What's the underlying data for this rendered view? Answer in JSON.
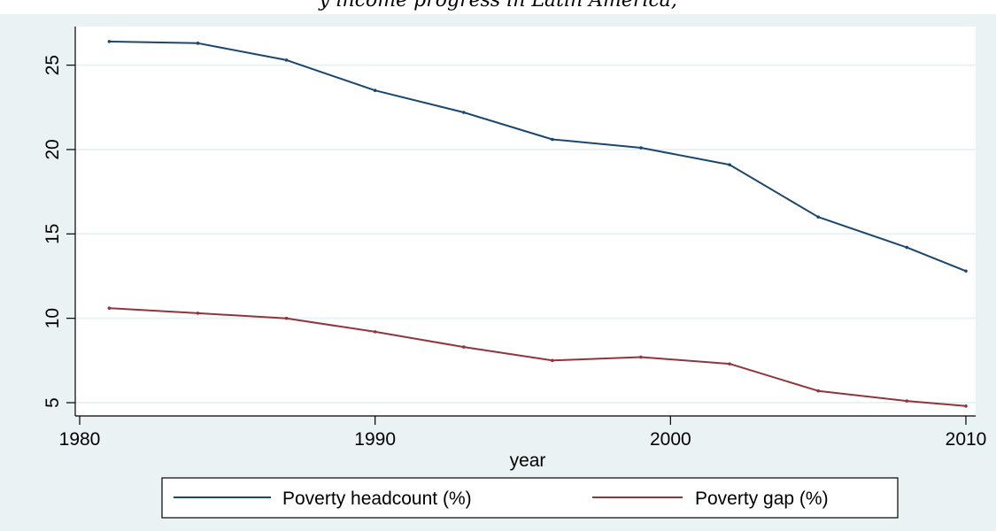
{
  "page": {
    "top_caption": "y  income progress in Latin America,"
  },
  "colors": {
    "panel_background": "#eaf2f3",
    "plot_background": "#ffffff",
    "gridline": "#eaf2f3",
    "axis": "#000000",
    "headcount_line": "#1a476f",
    "gap_line": "#90353b"
  },
  "chart_data": {
    "type": "line",
    "title": "",
    "xlabel": "year",
    "ylabel": "",
    "xlim": [
      1980,
      2010
    ],
    "ylim": [
      5,
      26.5
    ],
    "x_ticks": [
      "1980",
      "1990",
      "2000",
      "2010"
    ],
    "y_ticks": [
      "5",
      "10",
      "15",
      "20",
      "25"
    ],
    "grid": true,
    "legend_position": "bottom",
    "x": [
      1981,
      1984,
      1987,
      1990,
      1993,
      1996,
      1999,
      2002,
      2005,
      2008,
      2010
    ],
    "series": [
      {
        "name": "Poverty headcount (%)",
        "color": "#1a476f",
        "values": [
          26.4,
          26.3,
          25.3,
          23.5,
          22.2,
          20.6,
          20.1,
          19.1,
          16.0,
          14.2,
          12.8
        ]
      },
      {
        "name": "Poverty gap (%)",
        "color": "#90353b",
        "values": [
          10.6,
          10.3,
          10.0,
          9.2,
          8.3,
          7.5,
          7.7,
          7.3,
          5.7,
          5.1,
          4.8
        ]
      }
    ]
  }
}
